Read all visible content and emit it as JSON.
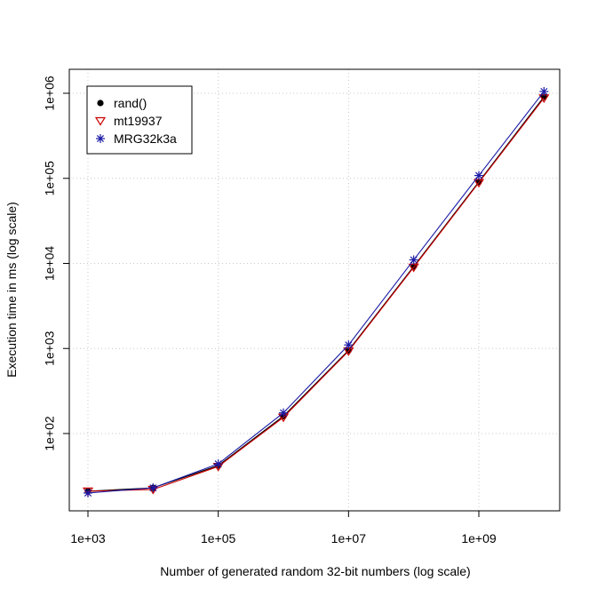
{
  "chart_data": {
    "type": "line",
    "xlabel": "Number of generated random 32-bit numbers (log scale)",
    "ylabel": "Execution time in ms (log scale)",
    "x_scale": "log",
    "y_scale": "log",
    "xlim": [
      1000,
      10000000000
    ],
    "ylim": [
      10,
      1000000
    ],
    "grid": true,
    "legend_position": "top-left",
    "x_ticks": [
      {
        "value": 1000,
        "label": "1e+03"
      },
      {
        "value": 100000,
        "label": "1e+05"
      },
      {
        "value": 10000000,
        "label": "1e+07"
      },
      {
        "value": 1000000000,
        "label": "1e+09"
      }
    ],
    "y_ticks": [
      {
        "value": 100,
        "label": "1e+02"
      },
      {
        "value": 1000,
        "label": "1e+03"
      },
      {
        "value": 10000,
        "label": "1e+04"
      },
      {
        "value": 100000,
        "label": "1e+05"
      },
      {
        "value": 1000000,
        "label": "1e+06"
      }
    ],
    "x": [
      1000,
      10000,
      100000,
      1000000,
      10000000,
      100000000,
      1000000000,
      10000000000
    ],
    "series": [
      {
        "name": "rand()",
        "color": "#000000",
        "marker": "dot",
        "values": [
          21,
          23,
          42,
          160,
          950,
          9200,
          91000,
          910000
        ]
      },
      {
        "name": "mt19937",
        "color": "#cc0000",
        "marker": "triangle-down",
        "values": [
          21,
          22,
          41,
          155,
          930,
          9000,
          89000,
          880000
        ]
      },
      {
        "name": "MRG32k3a",
        "color": "#1a1aa6",
        "marker": "asterisk",
        "values": [
          20,
          23,
          44,
          175,
          1100,
          11000,
          108000,
          1050000
        ]
      }
    ]
  }
}
